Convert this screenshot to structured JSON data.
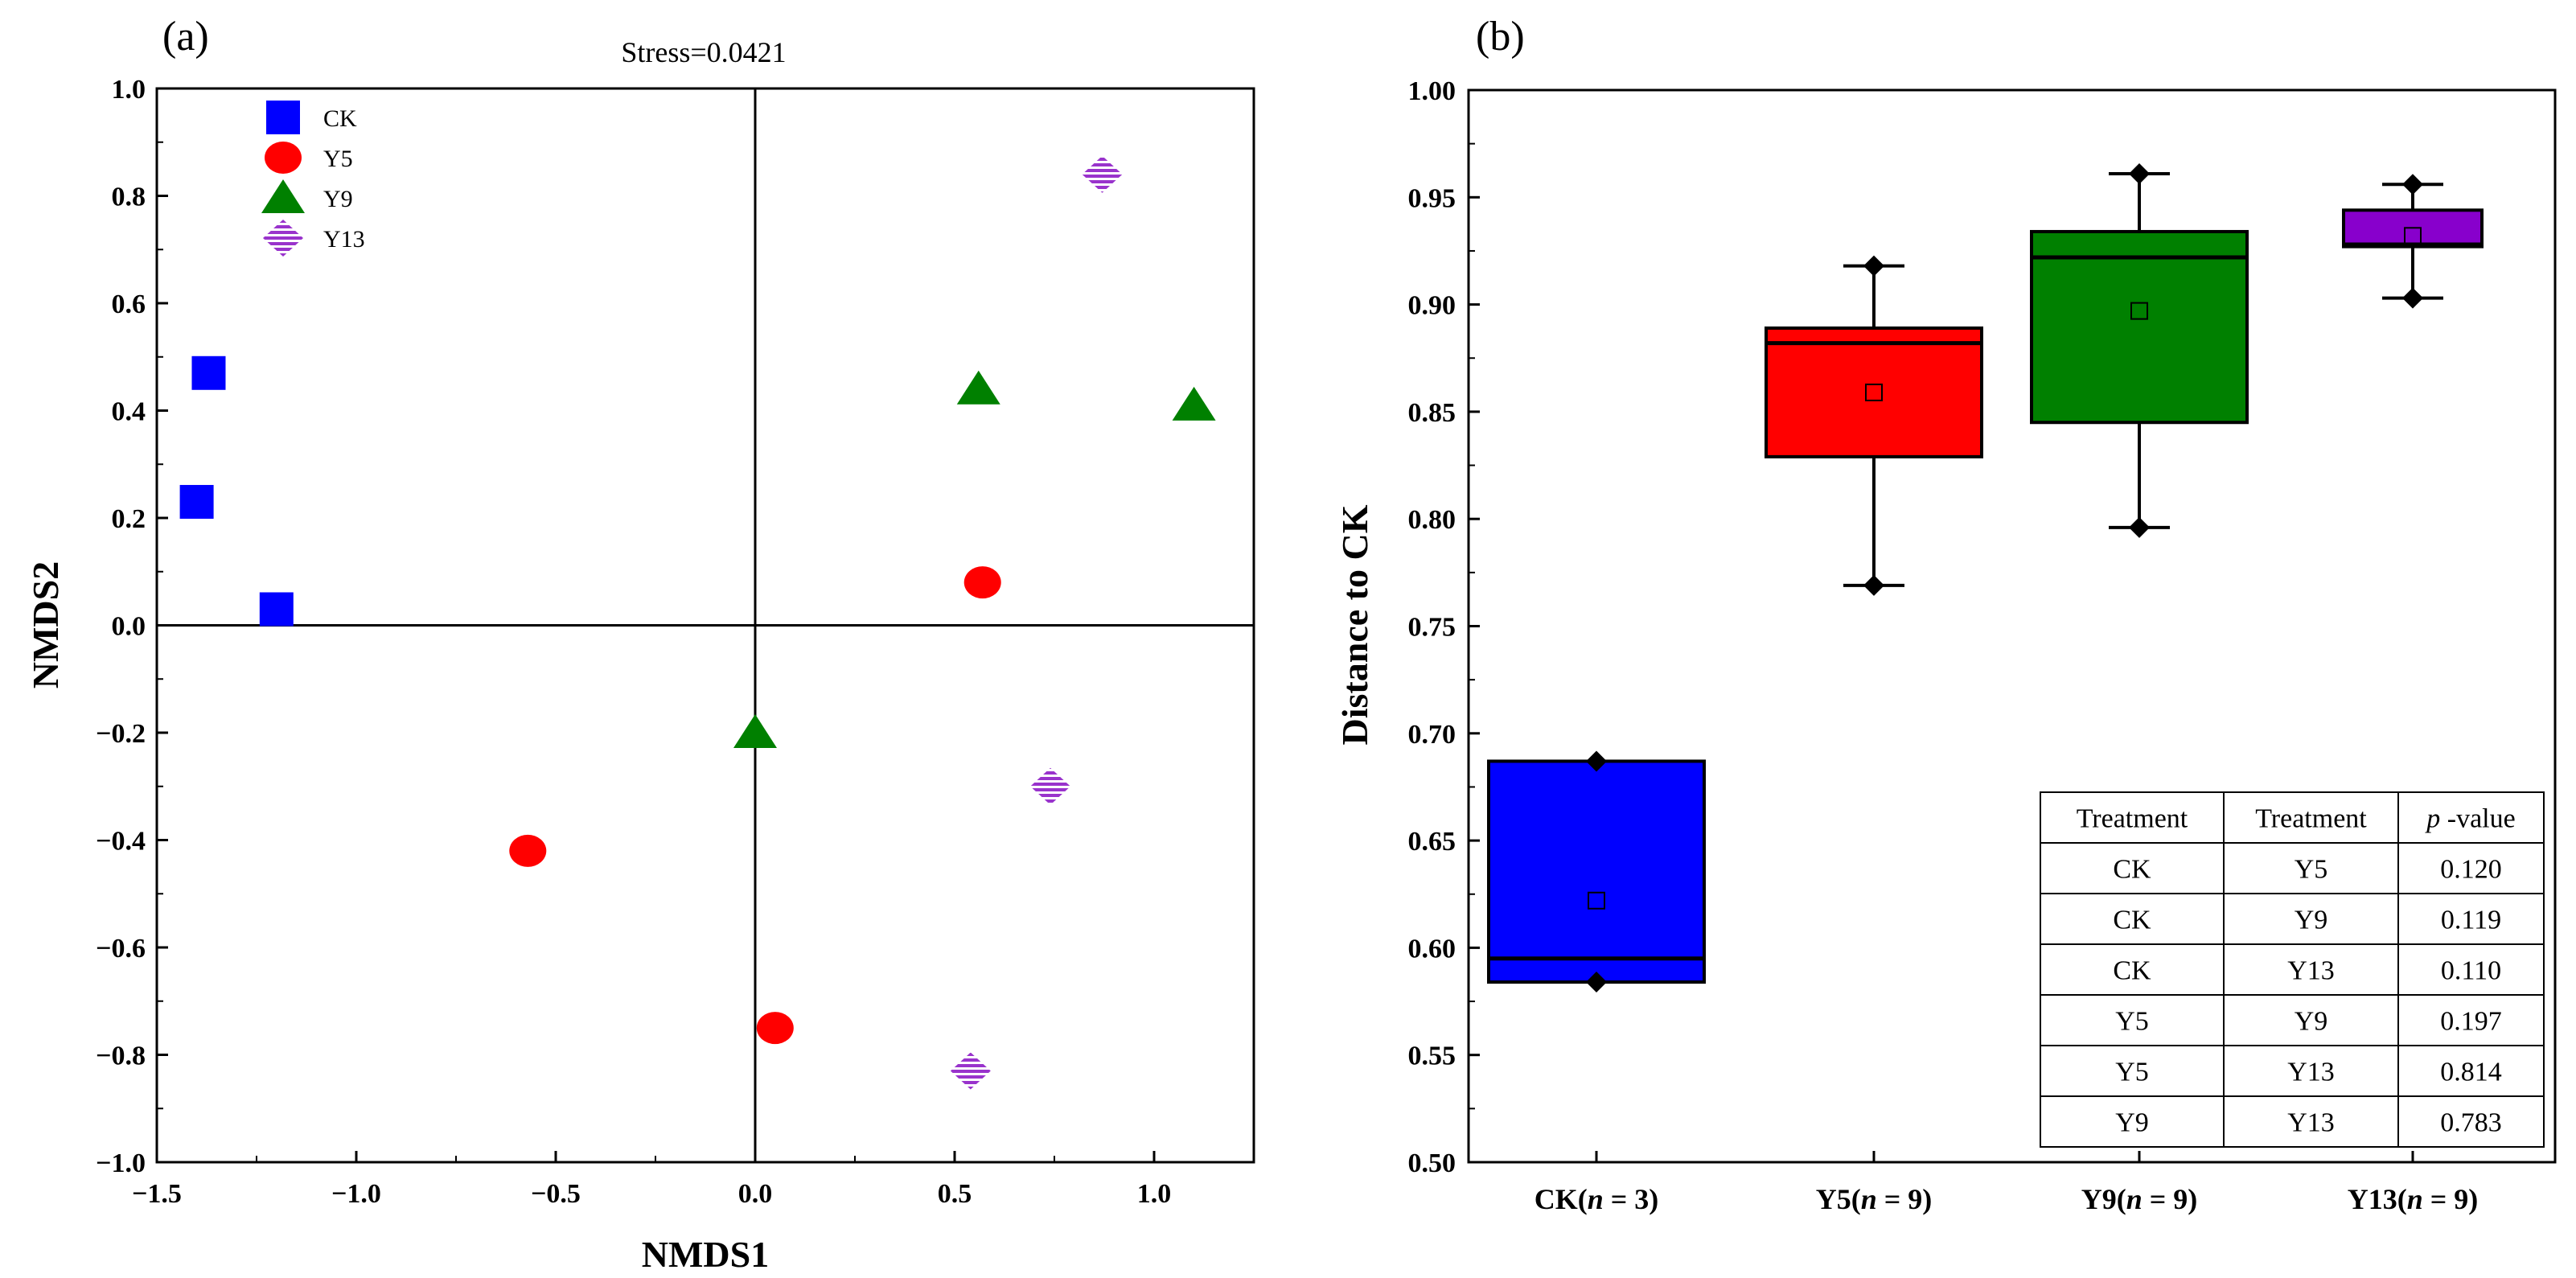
{
  "chart_data": [
    {
      "type": "scatter",
      "panel_label": "(a)",
      "title": "Stress=0.0421",
      "xlabel": "NMDS1",
      "ylabel": "NMDS2",
      "xlim": [
        -1.5,
        1.25
      ],
      "ylim": [
        -1.0,
        1.0
      ],
      "xticks": [
        "−1.5",
        "−1.0",
        "−0.5",
        "0.0",
        "0.5",
        "1.0"
      ],
      "yticks": [
        "−1.0",
        "−0.8",
        "−0.6",
        "−0.4",
        "−0.2",
        "0.0",
        "0.2",
        "0.4",
        "0.6",
        "0.8",
        "1.0"
      ],
      "reference_lines": {
        "x": 0,
        "y": 0
      },
      "legend_position": "top-left",
      "series": [
        {
          "name": "CK",
          "marker": "square",
          "color": "#0000FF",
          "points": [
            [
              -1.37,
              0.47
            ],
            [
              -1.4,
              0.23
            ],
            [
              -1.2,
              0.03
            ]
          ]
        },
        {
          "name": "Y5",
          "marker": "circle",
          "color": "#FF0000",
          "points": [
            [
              0.57,
              0.08
            ],
            [
              -0.57,
              -0.42
            ],
            [
              0.05,
              -0.75
            ]
          ]
        },
        {
          "name": "Y9",
          "marker": "triangle",
          "color": "#008000",
          "points": [
            [
              0.56,
              0.44
            ],
            [
              1.1,
              0.41
            ],
            [
              0.0,
              -0.2
            ]
          ]
        },
        {
          "name": "Y13",
          "marker": "diamond-striped",
          "color": "#9933CC",
          "points": [
            [
              0.87,
              0.84
            ],
            [
              0.74,
              -0.3
            ],
            [
              0.54,
              -0.83
            ]
          ]
        }
      ]
    },
    {
      "type": "box",
      "panel_label": "(b)",
      "ylabel": "Distance to CK",
      "ylim": [
        0.5,
        1.0
      ],
      "yticks": [
        "0.50",
        "0.55",
        "0.60",
        "0.65",
        "0.70",
        "0.75",
        "0.80",
        "0.85",
        "0.90",
        "0.95",
        "1.00"
      ],
      "categories": [
        {
          "label": "CK",
          "n": "3"
        },
        {
          "label": "Y5",
          "n": "9"
        },
        {
          "label": "Y9",
          "n": "9"
        },
        {
          "label": "Y13",
          "n": "9"
        }
      ],
      "boxes": [
        {
          "name": "CK",
          "color": "#0000FF",
          "whisker_low": 0.584,
          "q1": 0.584,
          "median": 0.595,
          "q3": 0.687,
          "whisker_high": 0.687,
          "mean": 0.622
        },
        {
          "name": "Y5",
          "color": "#FF0000",
          "whisker_low": 0.769,
          "q1": 0.829,
          "median": 0.882,
          "q3": 0.889,
          "whisker_high": 0.918,
          "mean": 0.859
        },
        {
          "name": "Y9",
          "color": "#008000",
          "whisker_low": 0.796,
          "q1": 0.845,
          "median": 0.922,
          "q3": 0.934,
          "whisker_high": 0.961,
          "mean": 0.897
        },
        {
          "name": "Y13",
          "color": "#8800CC",
          "whisker_low": 0.903,
          "q1": 0.927,
          "median": 0.928,
          "q3": 0.944,
          "whisker_high": 0.956,
          "mean": 0.932
        }
      ],
      "table": {
        "header": [
          "Treatment",
          "Treatment",
          "-value"
        ],
        "header_p": "p",
        "rows": [
          [
            "CK",
            "Y5",
            "0.120"
          ],
          [
            "CK",
            "Y9",
            "0.119"
          ],
          [
            "CK",
            "Y13",
            "0.110"
          ],
          [
            "Y5",
            "Y9",
            "0.197"
          ],
          [
            "Y5",
            "Y13",
            "0.814"
          ],
          [
            "Y9",
            "Y13",
            "0.783"
          ]
        ]
      }
    }
  ]
}
